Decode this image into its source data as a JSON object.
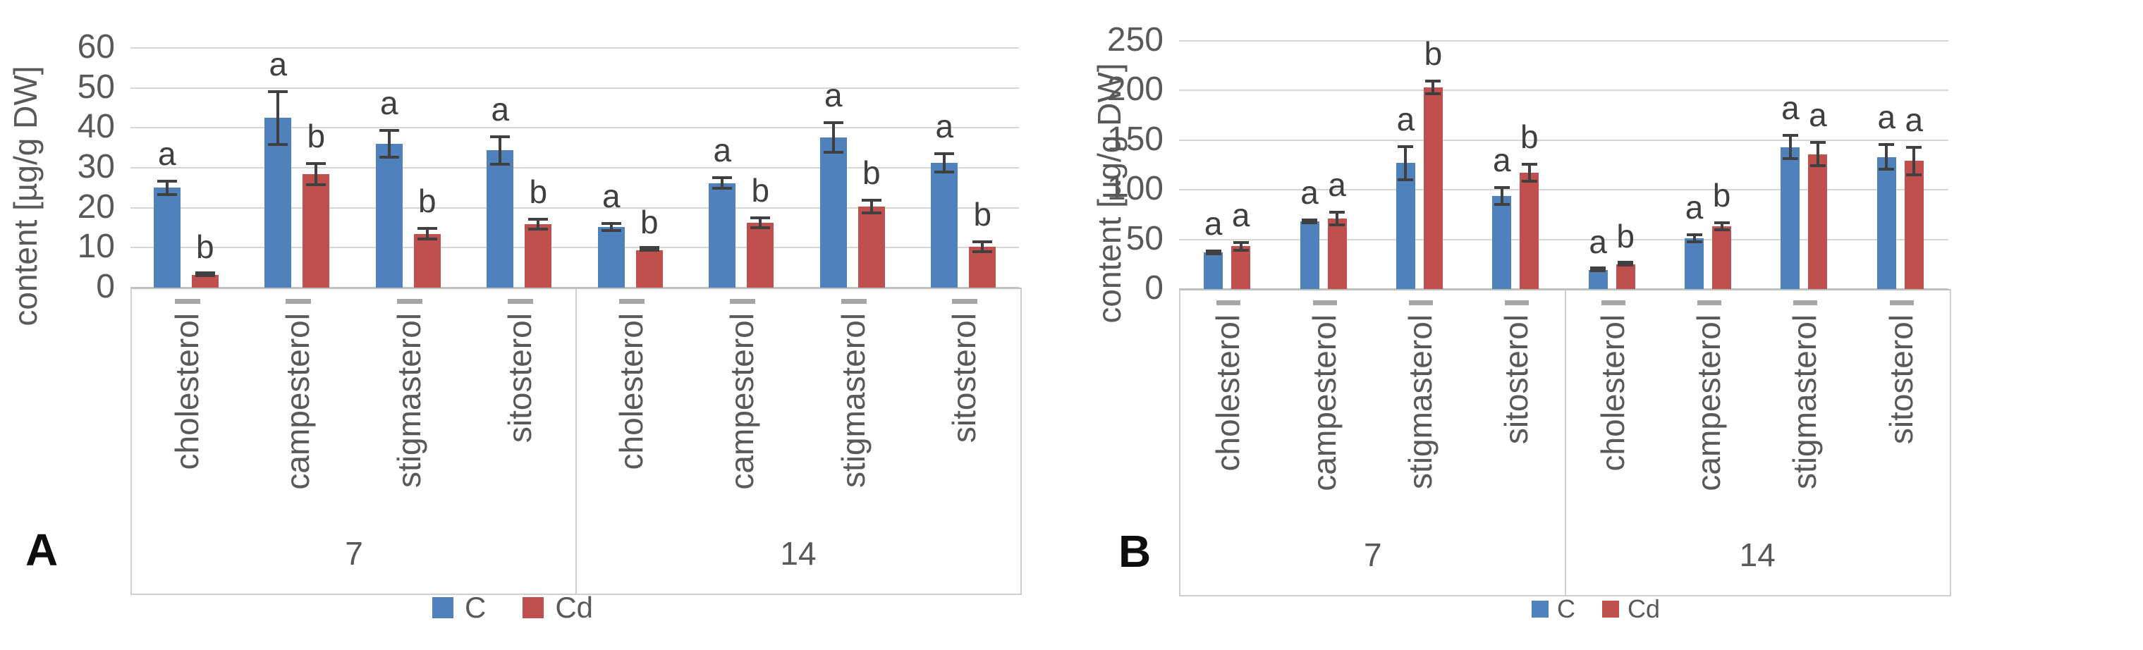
{
  "figure": {
    "description": "Two grouped bar charts comparing sterol content between control (C) and cadmium (Cd) treatments after 7 and 14 days",
    "panel_labels": [
      "A",
      "B"
    ]
  },
  "chart_data": [
    {
      "type": "bar",
      "panel_label": "A",
      "title": "",
      "xlabel": "",
      "ylabel": "content [µg/g DW]",
      "ylim": [
        0,
        60
      ],
      "yticks": [
        0,
        10,
        20,
        30,
        40,
        50,
        60
      ],
      "grid": true,
      "legend_position": "bottom",
      "categories": [
        "cholesterol",
        "campesterol",
        "stigmasterol",
        "sitosterol"
      ],
      "group_labels": [
        "7",
        "14"
      ],
      "series": [
        {
          "name": "C",
          "color": "#4F81BD"
        },
        {
          "name": "Cd",
          "color": "#C0504D"
        }
      ],
      "groups": [
        {
          "day": "7",
          "bars": [
            {
              "category": "cholesterol",
              "C": 25.0,
              "C_err": 2.0,
              "C_letter": "a",
              "Cd": 3.2,
              "Cd_err": 0.5,
              "Cd_letter": "b"
            },
            {
              "category": "campesterol",
              "C": 42.5,
              "C_err": 7.0,
              "C_letter": "a",
              "Cd": 28.5,
              "Cd_err": 3.0,
              "Cd_letter": "b"
            },
            {
              "category": "stigmasterol",
              "C": 36.0,
              "C_err": 3.7,
              "C_letter": "a",
              "Cd": 13.5,
              "Cd_err": 1.6,
              "Cd_letter": "b"
            },
            {
              "category": "sitosterol",
              "C": 34.4,
              "C_err": 3.8,
              "C_letter": "a",
              "Cd": 15.9,
              "Cd_err": 1.6,
              "Cd_letter": "b"
            }
          ]
        },
        {
          "day": "14",
          "bars": [
            {
              "category": "cholesterol",
              "C": 15.2,
              "C_err": 1.3,
              "C_letter": "a",
              "Cd": 9.4,
              "Cd_err": 0.4,
              "Cd_letter": "b"
            },
            {
              "category": "campesterol",
              "C": 26.2,
              "C_err": 1.6,
              "C_letter": "a",
              "Cd": 16.2,
              "Cd_err": 1.6,
              "Cd_letter": "b"
            },
            {
              "category": "stigmasterol",
              "C": 37.6,
              "C_err": 4.0,
              "C_letter": "a",
              "Cd": 20.3,
              "Cd_err": 2.0,
              "Cd_letter": "b"
            },
            {
              "category": "sitosterol",
              "C": 31.2,
              "C_err": 2.6,
              "C_letter": "a",
              "Cd": 10.2,
              "Cd_err": 1.6,
              "Cd_letter": "b"
            }
          ]
        }
      ]
    },
    {
      "type": "bar",
      "panel_label": "B",
      "title": "",
      "xlabel": "",
      "ylabel": "content [µg/g DW]",
      "ylim": [
        0,
        250
      ],
      "yticks": [
        0,
        50,
        100,
        150,
        200,
        250
      ],
      "grid": true,
      "legend_position": "bottom",
      "categories": [
        "cholesterol",
        "campesterol",
        "stigmasterol",
        "sitosterol"
      ],
      "group_labels": [
        "7",
        "14"
      ],
      "series": [
        {
          "name": "C",
          "color": "#4F81BD"
        },
        {
          "name": "Cd",
          "color": "#C0504D"
        }
      ],
      "groups": [
        {
          "day": "7",
          "bars": [
            {
              "category": "cholesterol",
              "C": 37,
              "C_err": 3,
              "C_letter": "a",
              "Cd": 43,
              "Cd_err": 5,
              "Cd_letter": "a"
            },
            {
              "category": "campesterol",
              "C": 68,
              "C_err": 3,
              "C_letter": "a",
              "Cd": 71,
              "Cd_err": 8,
              "Cd_letter": "a"
            },
            {
              "category": "stigmasterol",
              "C": 127,
              "C_err": 18,
              "C_letter": "a",
              "Cd": 203,
              "Cd_err": 8,
              "Cd_letter": "b"
            },
            {
              "category": "sitosterol",
              "C": 94,
              "C_err": 10,
              "C_letter": "a",
              "Cd": 117,
              "Cd_err": 10,
              "Cd_letter": "b"
            }
          ]
        },
        {
          "day": "14",
          "bars": [
            {
              "category": "cholesterol",
              "C": 19,
              "C_err": 2,
              "C_letter": "a",
              "Cd": 25,
              "Cd_err": 2,
              "Cd_letter": "b"
            },
            {
              "category": "campesterol",
              "C": 51,
              "C_err": 5,
              "C_letter": "a",
              "Cd": 63,
              "Cd_err": 5,
              "Cd_letter": "b"
            },
            {
              "category": "stigmasterol",
              "C": 143,
              "C_err": 13,
              "C_letter": "a",
              "Cd": 136,
              "Cd_err": 13,
              "Cd_letter": "a"
            },
            {
              "category": "sitosterol",
              "C": 133,
              "C_err": 14,
              "C_letter": "a",
              "Cd": 129,
              "Cd_err": 15,
              "Cd_letter": "a"
            }
          ]
        }
      ]
    }
  ]
}
